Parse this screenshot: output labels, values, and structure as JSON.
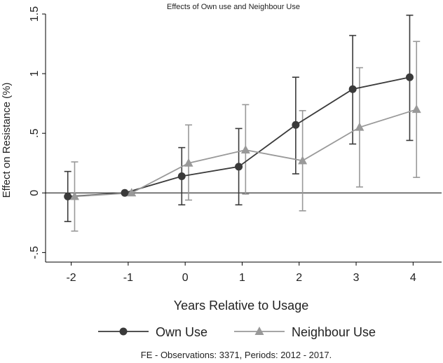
{
  "colors": {
    "own": "#3a3a3a",
    "neighbour": "#999999",
    "axis": "#000000",
    "text": "#222222"
  },
  "chart_data": {
    "type": "line",
    "title": "Effects of Own use and Neighbour Use",
    "xlabel": "Years Relative to Usage",
    "ylabel": "Effect on Resistance (%)",
    "note": "FE - Observations: 3371, Periods: 2012 - 2017.",
    "xlim": [
      -2.45,
      4.5
    ],
    "ylim": [
      -0.58,
      1.5
    ],
    "x_ticks": [
      -2,
      -1,
      0,
      1,
      2,
      3,
      4
    ],
    "x_tick_labels": [
      "-2",
      "-1",
      "0",
      "1",
      "2",
      "3",
      "4"
    ],
    "y_ticks": [
      -0.5,
      0,
      0.5,
      1,
      1.5
    ],
    "y_tick_labels": [
      "-.5",
      "0",
      ".5",
      "1",
      "1.5"
    ],
    "reference_line_y": 0,
    "grid": false,
    "legend_position": "bottom",
    "series": [
      {
        "name": "Own Use",
        "marker": "circle",
        "color": "#3a3a3a",
        "offset": -0.06,
        "x": [
          -2,
          -1,
          0,
          1,
          2,
          3,
          4
        ],
        "y": [
          -0.03,
          0.0,
          0.14,
          0.22,
          0.57,
          0.87,
          0.97
        ],
        "ci_low": [
          -0.24,
          0.0,
          -0.1,
          -0.1,
          0.16,
          0.41,
          0.44
        ],
        "ci_high": [
          0.18,
          0.0,
          0.38,
          0.54,
          0.97,
          1.32,
          1.49
        ]
      },
      {
        "name": "Neighbour Use",
        "marker": "triangle",
        "color": "#999999",
        "offset": 0.06,
        "x": [
          -2,
          -1,
          0,
          1,
          2,
          3,
          4
        ],
        "y": [
          -0.03,
          0.0,
          0.25,
          0.36,
          0.27,
          0.55,
          0.7
        ],
        "ci_low": [
          -0.32,
          0.0,
          -0.06,
          -0.01,
          -0.15,
          0.05,
          0.13
        ],
        "ci_high": [
          0.26,
          0.0,
          0.57,
          0.74,
          0.69,
          1.05,
          1.27
        ]
      }
    ]
  }
}
